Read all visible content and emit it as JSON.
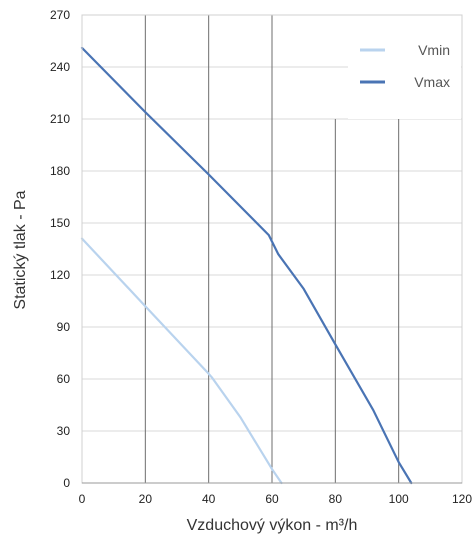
{
  "chart_data": {
    "type": "line",
    "xlabel": "Vzduchový výkon - m³/h",
    "ylabel": "Statický tlak - Pa",
    "xlim": [
      0,
      120
    ],
    "ylim": [
      0,
      270
    ],
    "xticks": [
      0,
      20,
      40,
      60,
      80,
      100,
      120
    ],
    "yticks": [
      0,
      30,
      60,
      90,
      120,
      150,
      180,
      210,
      240,
      270
    ],
    "grid": true,
    "legend_position": "top-right",
    "series": [
      {
        "name": "Vmin",
        "color": "#b9d3ee",
        "points": [
          [
            0,
            141
          ],
          [
            20,
            102
          ],
          [
            40,
            63
          ],
          [
            41,
            61
          ],
          [
            50,
            38
          ],
          [
            60,
            8
          ],
          [
            63,
            0
          ]
        ]
      },
      {
        "name": "Vmax",
        "color": "#4a74b4",
        "points": [
          [
            0,
            251
          ],
          [
            20,
            214
          ],
          [
            40,
            178
          ],
          [
            59,
            143
          ],
          [
            62,
            132
          ],
          [
            70,
            112
          ],
          [
            80,
            80
          ],
          [
            92,
            42
          ],
          [
            100,
            12
          ],
          [
            104,
            0
          ]
        ]
      }
    ]
  }
}
